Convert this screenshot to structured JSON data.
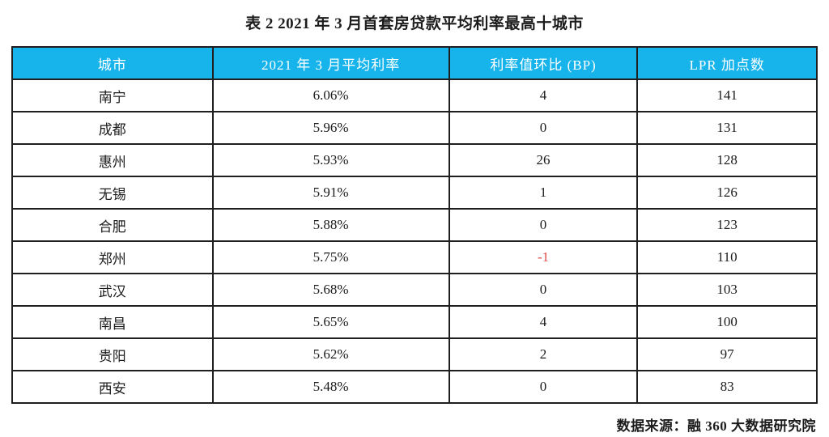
{
  "title": "表 2 2021 年 3 月首套房贷款平均利率最高十城市",
  "table": {
    "headers": [
      "城市",
      "2021 年 3 月平均利率",
      "利率值环比 (BP)",
      "LPR 加点数"
    ],
    "rows": [
      {
        "city": "南宁",
        "rate": "6.06%",
        "mom_bp": "4",
        "lpr_points": "141"
      },
      {
        "city": "成都",
        "rate": "5.96%",
        "mom_bp": "0",
        "lpr_points": "131"
      },
      {
        "city": "惠州",
        "rate": "5.93%",
        "mom_bp": "26",
        "lpr_points": "128"
      },
      {
        "city": "无锡",
        "rate": "5.91%",
        "mom_bp": "1",
        "lpr_points": "126"
      },
      {
        "city": "合肥",
        "rate": "5.88%",
        "mom_bp": "0",
        "lpr_points": "123"
      },
      {
        "city": "郑州",
        "rate": "5.75%",
        "mom_bp": "-1",
        "lpr_points": "110"
      },
      {
        "city": "武汉",
        "rate": "5.68%",
        "mom_bp": "0",
        "lpr_points": "103"
      },
      {
        "city": "南昌",
        "rate": "5.65%",
        "mom_bp": "4",
        "lpr_points": "100"
      },
      {
        "city": "贵阳",
        "rate": "5.62%",
        "mom_bp": "2",
        "lpr_points": "97"
      },
      {
        "city": "西安",
        "rate": "5.48%",
        "mom_bp": "0",
        "lpr_points": "83"
      }
    ]
  },
  "footer": {
    "source": "数据来源：融 360 大数据研究院"
  },
  "colors": {
    "header_bg": "#17b4ec",
    "header_text": "#ffffff",
    "text": "#1c1c1c",
    "border": "#1f1f1f",
    "negative": "#e14b4b",
    "page_bg": "#ffffff"
  },
  "chart_data": {
    "type": "table",
    "title": "表 2 2021 年 3 月首套房贷款平均利率最高十城市",
    "columns": [
      "城市",
      "2021 年 3 月平均利率",
      "利率值环比 (BP)",
      "LPR 加点数"
    ],
    "rows": [
      [
        "南宁",
        "6.06%",
        4,
        141
      ],
      [
        "成都",
        "5.96%",
        0,
        131
      ],
      [
        "惠州",
        "5.93%",
        26,
        128
      ],
      [
        "无锡",
        "5.91%",
        1,
        126
      ],
      [
        "合肥",
        "5.88%",
        0,
        123
      ],
      [
        "郑州",
        "5.75%",
        -1,
        110
      ],
      [
        "武汉",
        "5.68%",
        0,
        103
      ],
      [
        "南昌",
        "5.65%",
        4,
        100
      ],
      [
        "贵阳",
        "5.62%",
        2,
        97
      ],
      [
        "西安",
        "5.48%",
        0,
        83
      ]
    ],
    "notes": "负值 -1 以红色显示；表头为青色底白字",
    "source": "数据来源：融 360 大数据研究院"
  }
}
